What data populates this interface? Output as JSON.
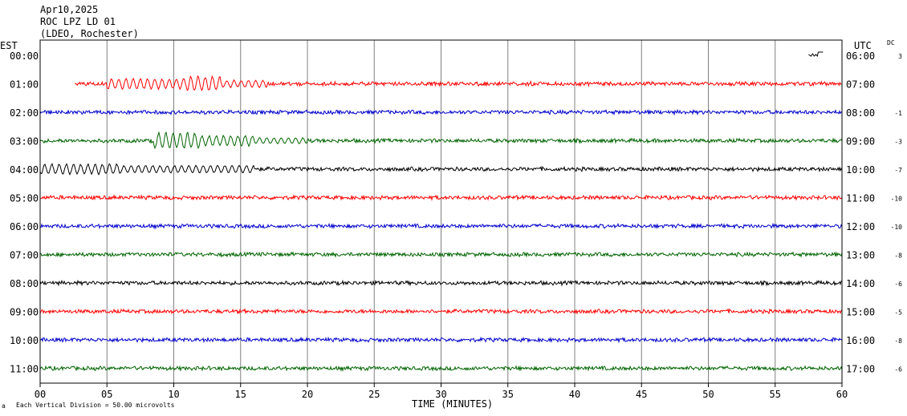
{
  "header": {
    "date": "Apr10,2025",
    "station": "ROC LPZ LD 01",
    "network": "(LDEO, Rochester)"
  },
  "axes": {
    "left_zone": "EST",
    "right_zone": "UTC",
    "dc_label": "DC",
    "xlabel": "TIME (MINUTES)"
  },
  "footer": {
    "mark": "a",
    "scale_note": "Each Vertical Division =   50.00 microvolts"
  },
  "colors": {
    "red": "#ff0000",
    "blue": "#0000cc",
    "green": "#006400",
    "black": "#000000",
    "grid": "#808080"
  },
  "chart_data": {
    "type": "line",
    "xlim": [
      0,
      60
    ],
    "x_ticks": [
      "00",
      "05",
      "10",
      "15",
      "20",
      "25",
      "30",
      "35",
      "40",
      "45",
      "50",
      "55",
      "60"
    ],
    "grid": true,
    "event_marker_minute": 57.5,
    "traces": [
      {
        "est": "00:00",
        "utc": "06:00",
        "dc": "3",
        "color": "red",
        "start": 60,
        "end": 60,
        "events": []
      },
      {
        "est": "01:00",
        "utc": "07:00",
        "dc": "",
        "color": "red",
        "start": 2.6,
        "end": 60,
        "events": [
          {
            "from": 5,
            "to": 11,
            "amp": 7
          },
          {
            "from": 11,
            "to": 13.5,
            "amp": 10
          },
          {
            "from": 13.5,
            "to": 17,
            "amp": 5
          }
        ]
      },
      {
        "est": "02:00",
        "utc": "08:00",
        "dc": "-1",
        "color": "blue",
        "start": 0,
        "end": 60,
        "events": []
      },
      {
        "est": "03:00",
        "utc": "09:00",
        "dc": "-3",
        "color": "green",
        "start": 0,
        "end": 60,
        "events": [
          {
            "from": 8.5,
            "to": 12,
            "amp": 11
          },
          {
            "from": 12,
            "to": 16,
            "amp": 7
          },
          {
            "from": 16,
            "to": 20,
            "amp": 4
          }
        ]
      },
      {
        "est": "04:00",
        "utc": "10:00",
        "dc": "-7",
        "color": "black",
        "start": 0,
        "end": 60,
        "events": [
          {
            "from": 0,
            "to": 6,
            "amp": 7
          },
          {
            "from": 6,
            "to": 16,
            "amp": 5
          }
        ]
      },
      {
        "est": "05:00",
        "utc": "11:00",
        "dc": "-10",
        "color": "red",
        "start": 0,
        "end": 60,
        "events": []
      },
      {
        "est": "06:00",
        "utc": "12:00",
        "dc": "-10",
        "color": "blue",
        "start": 0,
        "end": 60,
        "events": []
      },
      {
        "est": "07:00",
        "utc": "13:00",
        "dc": "-8",
        "color": "green",
        "start": 0,
        "end": 60,
        "events": []
      },
      {
        "est": "08:00",
        "utc": "14:00",
        "dc": "-6",
        "color": "black",
        "start": 0,
        "end": 60,
        "events": []
      },
      {
        "est": "09:00",
        "utc": "15:00",
        "dc": "-5",
        "color": "red",
        "start": 0,
        "end": 60,
        "events": []
      },
      {
        "est": "10:00",
        "utc": "16:00",
        "dc": "-8",
        "color": "blue",
        "start": 0,
        "end": 60,
        "events": []
      },
      {
        "est": "11:00",
        "utc": "17:00",
        "dc": "-6",
        "color": "green",
        "start": 0,
        "end": 60,
        "events": []
      }
    ]
  }
}
